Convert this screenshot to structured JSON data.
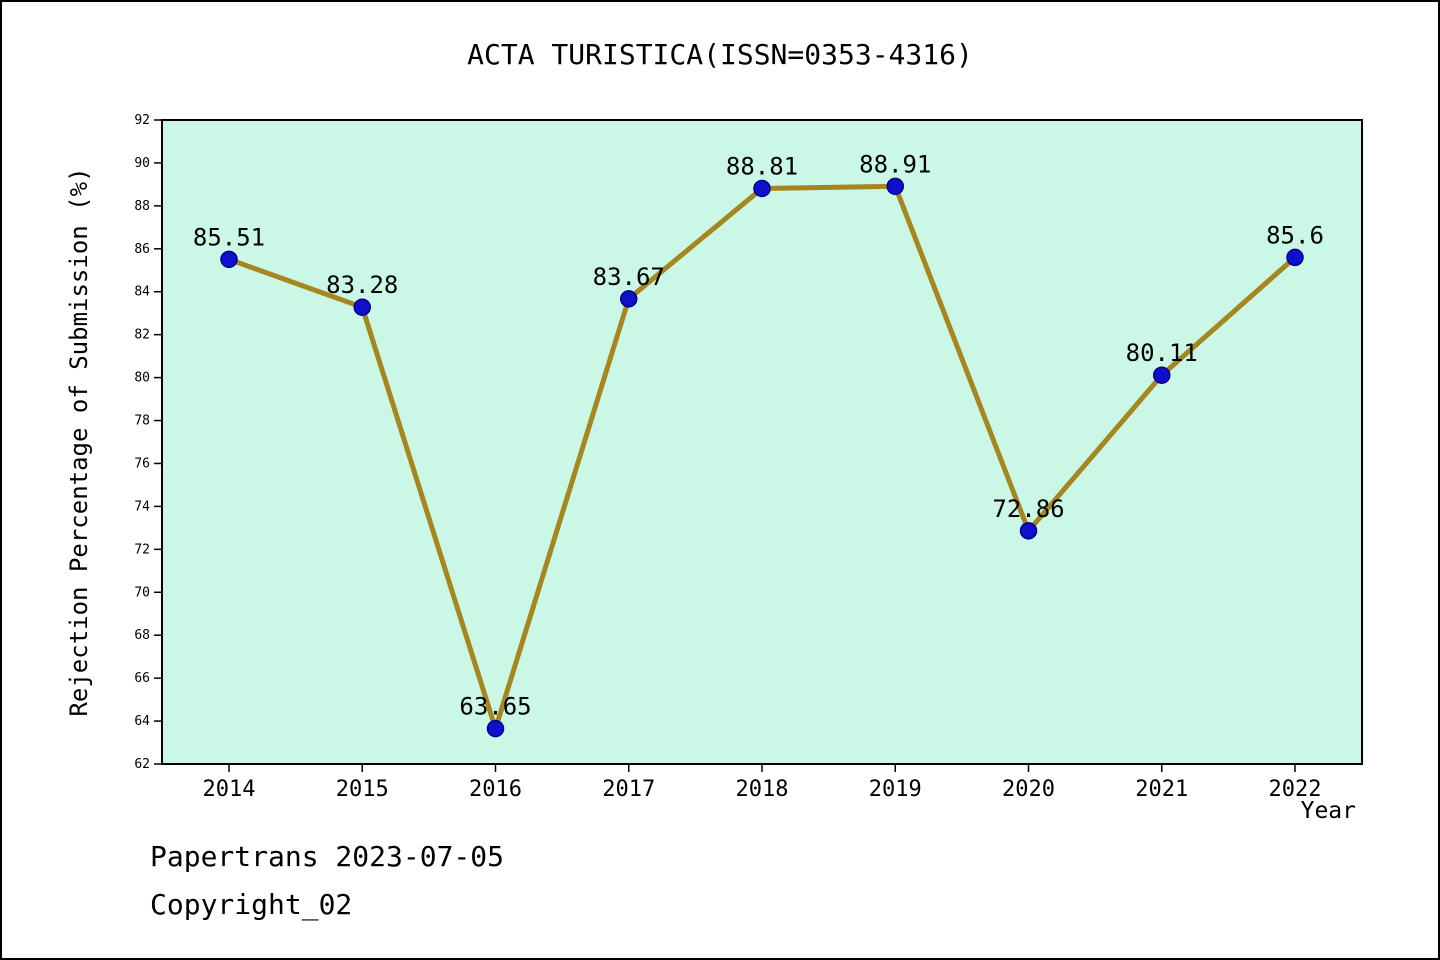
{
  "chart_data": {
    "type": "line",
    "title": "ACTA TURISTICA(ISSN=0353-4316)",
    "xlabel": "Year",
    "ylabel": "Rejection Percentage of Submission (%)",
    "categories": [
      "2014",
      "2015",
      "2016",
      "2017",
      "2018",
      "2019",
      "2020",
      "2021",
      "2022"
    ],
    "values": [
      85.51,
      83.28,
      63.65,
      83.67,
      88.81,
      88.91,
      72.86,
      80.11,
      85.6
    ],
    "point_labels": [
      "85.51",
      "83.28",
      "63.65",
      "83.67",
      "88.81",
      "88.91",
      "72.86",
      "80.11",
      "85.6"
    ],
    "ylim": [
      62,
      92
    ],
    "ytick_step": 2,
    "grid": "off",
    "legend_position": "none",
    "line_color": "#A6861E",
    "marker_color": "#1010CC",
    "marker_edge_color": "#00008B",
    "plot_background": "#CBF7E7",
    "axis_color": "#000000"
  },
  "footer": {
    "line1": "Papertrans 2023-07-05",
    "line2": "Copyright_02"
  }
}
